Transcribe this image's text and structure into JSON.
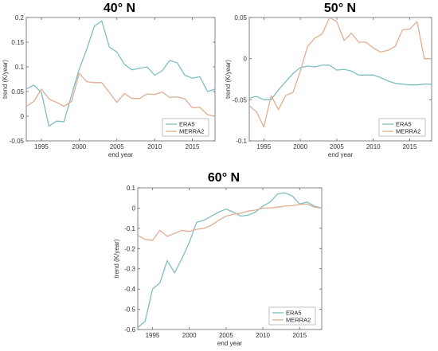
{
  "colors": {
    "era5": "#7fbfc0",
    "merra2": "#dfae93",
    "axis": "#666666"
  },
  "chart_data": [
    {
      "type": "line",
      "title": "40° N",
      "xlabel": "end year",
      "ylabel": "trend (K/year)",
      "xlim": [
        1993,
        2018
      ],
      "ylim": [
        -0.05,
        0.2
      ],
      "xticks": [
        1995,
        2000,
        2005,
        2010,
        2015
      ],
      "yticks": [
        -0.05,
        0,
        0.05,
        0.1,
        0.15,
        0.2
      ],
      "ytick_labels": [
        "-0.05",
        "0",
        "0.05",
        "0.1",
        "0.15",
        "0.2"
      ],
      "legend_position": "bottom-right",
      "x": [
        1993,
        1994,
        1995,
        1996,
        1997,
        1998,
        1999,
        2000,
        2001,
        2002,
        2003,
        2004,
        2005,
        2006,
        2007,
        2008,
        2009,
        2010,
        2011,
        2012,
        2013,
        2014,
        2015,
        2016,
        2017,
        2018
      ],
      "series": [
        {
          "name": "ERA5",
          "color_key": "era5",
          "values": [
            0.055,
            0.063,
            0.048,
            -0.02,
            -0.01,
            -0.011,
            0.043,
            0.095,
            0.135,
            0.182,
            0.193,
            0.14,
            0.13,
            0.105,
            0.094,
            0.097,
            0.1,
            0.083,
            0.092,
            0.113,
            0.108,
            0.083,
            0.077,
            0.08,
            0.05,
            0.055
          ]
        },
        {
          "name": "MERRA2",
          "color_key": "merra2",
          "values": [
            0.02,
            0.03,
            0.055,
            0.035,
            0.028,
            0.02,
            0.03,
            0.087,
            0.07,
            0.068,
            0.068,
            0.048,
            0.028,
            0.046,
            0.036,
            0.036,
            0.045,
            0.044,
            0.049,
            0.038,
            0.039,
            0.035,
            0.017,
            0.018,
            0.003,
            0.0
          ]
        }
      ]
    },
    {
      "type": "line",
      "title": "50° N",
      "xlabel": "end year",
      "ylabel": "trend (K/year)",
      "xlim": [
        1993,
        2018
      ],
      "ylim": [
        -0.1,
        0.05
      ],
      "xticks": [
        1995,
        2000,
        2005,
        2010,
        2015
      ],
      "yticks": [
        -0.1,
        -0.05,
        0,
        0.05
      ],
      "ytick_labels": [
        "-0.1",
        "-0.05",
        "0",
        "0.05"
      ],
      "legend_position": "bottom-right",
      "x": [
        1993,
        1994,
        1995,
        1996,
        1997,
        1998,
        1999,
        2000,
        2001,
        2002,
        2003,
        2004,
        2005,
        2006,
        2007,
        2008,
        2009,
        2010,
        2011,
        2012,
        2013,
        2014,
        2015,
        2016,
        2017,
        2018
      ],
      "series": [
        {
          "name": "ERA5",
          "color_key": "era5",
          "values": [
            -0.048,
            -0.046,
            -0.05,
            -0.05,
            -0.038,
            -0.028,
            -0.018,
            -0.011,
            -0.009,
            -0.01,
            -0.008,
            -0.008,
            -0.014,
            -0.013,
            -0.015,
            -0.02,
            -0.02,
            -0.02,
            -0.023,
            -0.027,
            -0.03,
            -0.031,
            -0.032,
            -0.032,
            -0.031,
            -0.031
          ]
        },
        {
          "name": "MERRA2",
          "color_key": "merra2",
          "values": [
            -0.057,
            -0.065,
            -0.083,
            -0.045,
            -0.062,
            -0.045,
            -0.041,
            -0.015,
            0.015,
            0.025,
            0.03,
            0.05,
            0.045,
            0.022,
            0.031,
            0.02,
            0.02,
            0.013,
            0.008,
            0.01,
            0.015,
            0.035,
            0.036,
            0.045,
            0.0,
            0.0
          ]
        }
      ]
    },
    {
      "type": "line",
      "title": "60° N",
      "xlabel": "end year",
      "ylabel": "trend (K/year)",
      "xlim": [
        1993,
        2018
      ],
      "ylim": [
        -0.6,
        0.1
      ],
      "xticks": [
        1995,
        2000,
        2005,
        2010,
        2015
      ],
      "yticks": [
        -0.6,
        -0.5,
        -0.4,
        -0.3,
        -0.2,
        -0.1,
        0,
        0.1
      ],
      "ytick_labels": [
        "-0.6",
        "-0.5",
        "-0.4",
        "-0.3",
        "-0.2",
        "-0.1",
        "0",
        "0.1"
      ],
      "legend_position": "bottom-right",
      "x": [
        1993,
        1994,
        1995,
        1996,
        1997,
        1998,
        1999,
        2000,
        2001,
        2002,
        2003,
        2004,
        2005,
        2006,
        2007,
        2008,
        2009,
        2010,
        2011,
        2012,
        2013,
        2014,
        2015,
        2016,
        2017,
        2018
      ],
      "series": [
        {
          "name": "ERA5",
          "color_key": "era5",
          "values": [
            -0.59,
            -0.56,
            -0.4,
            -0.37,
            -0.26,
            -0.32,
            -0.25,
            -0.17,
            -0.07,
            -0.06,
            -0.04,
            -0.02,
            -0.005,
            -0.02,
            -0.04,
            -0.035,
            -0.02,
            0.01,
            0.03,
            0.07,
            0.075,
            0.06,
            0.02,
            0.03,
            0.01,
            0.0
          ]
        },
        {
          "name": "MERRA2",
          "color_key": "merra2",
          "values": [
            -0.135,
            -0.155,
            -0.16,
            -0.11,
            -0.14,
            -0.125,
            -0.11,
            -0.115,
            -0.105,
            -0.1,
            -0.085,
            -0.06,
            -0.04,
            -0.03,
            -0.025,
            -0.015,
            -0.01,
            0.0,
            0.0,
            0.005,
            0.01,
            0.012,
            0.018,
            0.02,
            0.005,
            0.0
          ]
        }
      ]
    }
  ]
}
